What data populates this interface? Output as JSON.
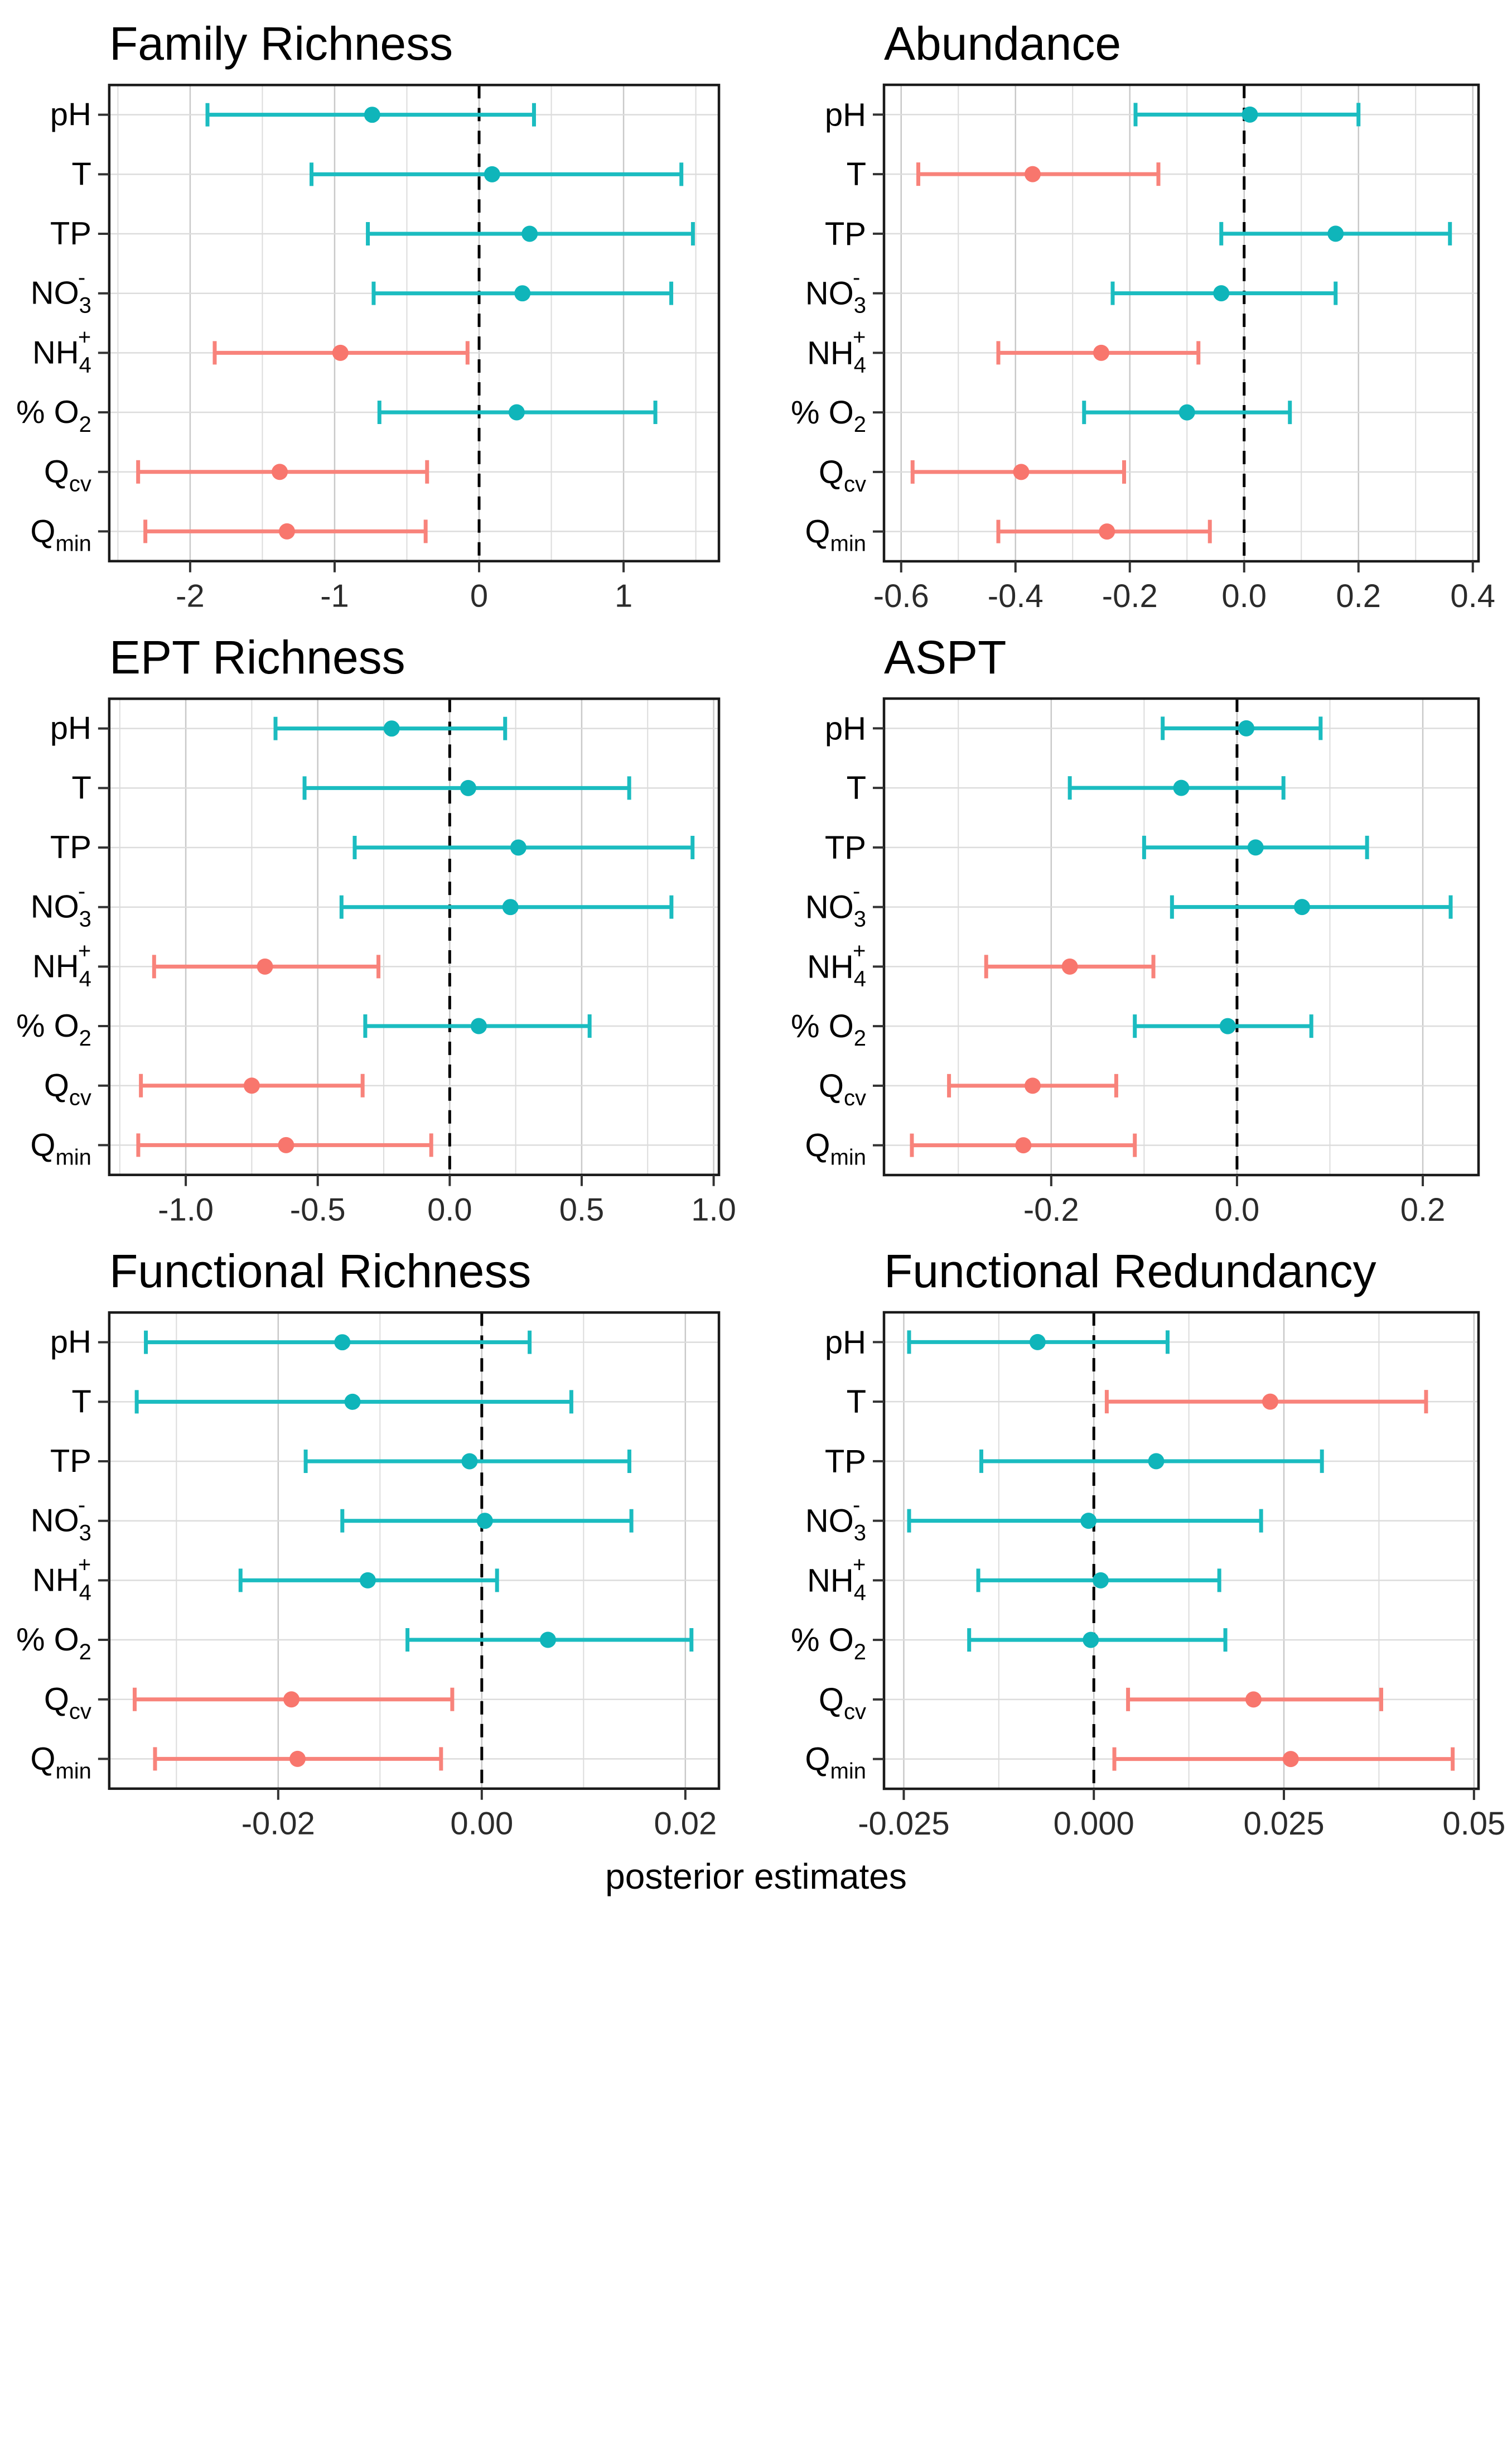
{
  "caption": "posterior estimates",
  "colors": {
    "nonsignificant_line": "#1BBCC0",
    "nonsignificant_point": "#0FB5BA",
    "significant_line": "#F8837B",
    "significant_point": "#F8766D",
    "grid_major": "#C9C9C9",
    "grid_minor": "#DCDCDC",
    "panel_border": "#1A1A1A",
    "tick": "#333333",
    "tick_label": "#2B2B2B",
    "y_label": "#000000",
    "zero_line": "#000000"
  },
  "category_labels": {
    "pH": {
      "parts": [
        {
          "t": "pH"
        }
      ]
    },
    "T": {
      "parts": [
        {
          "t": "T"
        }
      ]
    },
    "TP": {
      "parts": [
        {
          "t": "TP"
        }
      ]
    },
    "NO3": {
      "parts": [
        {
          "t": "NO"
        },
        {
          "t": "3",
          "pos": "sub"
        },
        {
          "t": "-",
          "pos": "sup",
          "stack": true
        }
      ]
    },
    "NH4": {
      "parts": [
        {
          "t": "NH"
        },
        {
          "t": "4",
          "pos": "sub"
        },
        {
          "t": "+",
          "pos": "sup",
          "stack": true
        }
      ]
    },
    "O2": {
      "parts": [
        {
          "t": "% O"
        },
        {
          "t": "2",
          "pos": "sub"
        }
      ]
    },
    "Qcv": {
      "parts": [
        {
          "t": "Q"
        },
        {
          "t": "cv",
          "pos": "sub"
        }
      ]
    },
    "Qmin": {
      "parts": [
        {
          "t": "Q"
        },
        {
          "t": "min",
          "pos": "sub"
        }
      ]
    }
  },
  "chart_data": [
    {
      "type": "errorbar",
      "title": "Family Richness",
      "xlabel": "",
      "xlim": [
        -2.56,
        1.66
      ],
      "xticks": {
        "values": [
          -2,
          -1,
          0,
          1
        ],
        "labels": [
          "-2",
          "-1",
          "0",
          "1"
        ]
      },
      "categories": [
        "pH",
        "T",
        "TP",
        "NO3",
        "NH4",
        "O2",
        "Qcv",
        "Qmin"
      ],
      "series": [
        {
          "category": "pH",
          "estimate": -0.74,
          "lower": -1.88,
          "upper": 0.38,
          "significant": false
        },
        {
          "category": "T",
          "estimate": 0.09,
          "lower": -1.16,
          "upper": 1.4,
          "significant": false
        },
        {
          "category": "TP",
          "estimate": 0.35,
          "lower": -0.77,
          "upper": 1.48,
          "significant": false
        },
        {
          "category": "NO3",
          "estimate": 0.3,
          "lower": -0.73,
          "upper": 1.33,
          "significant": false
        },
        {
          "category": "NH4",
          "estimate": -0.96,
          "lower": -1.83,
          "upper": -0.08,
          "significant": true
        },
        {
          "category": "O2",
          "estimate": 0.26,
          "lower": -0.69,
          "upper": 1.22,
          "significant": false
        },
        {
          "category": "Qcv",
          "estimate": -1.38,
          "lower": -2.36,
          "upper": -0.36,
          "significant": true
        },
        {
          "category": "Qmin",
          "estimate": -1.33,
          "lower": -2.31,
          "upper": -0.37,
          "significant": true
        }
      ]
    },
    {
      "type": "errorbar",
      "title": "Abundance",
      "xlabel": "",
      "xlim": [
        -0.63,
        0.41
      ],
      "xticks": {
        "values": [
          -0.6,
          -0.4,
          -0.2,
          0,
          0.2,
          0.4
        ],
        "labels": [
          "-0.6",
          "-0.4",
          "-0.2",
          "0.0",
          "0.2",
          "0.4"
        ]
      },
      "categories": [
        "pH",
        "T",
        "TP",
        "NO3",
        "NH4",
        "O2",
        "Qcv",
        "Qmin"
      ],
      "series": [
        {
          "category": "pH",
          "estimate": 0.01,
          "lower": -0.19,
          "upper": 0.2,
          "significant": false
        },
        {
          "category": "T",
          "estimate": -0.37,
          "lower": -0.57,
          "upper": -0.15,
          "significant": true
        },
        {
          "category": "TP",
          "estimate": 0.16,
          "lower": -0.04,
          "upper": 0.36,
          "significant": false
        },
        {
          "category": "NO3",
          "estimate": -0.04,
          "lower": -0.23,
          "upper": 0.16,
          "significant": false
        },
        {
          "category": "NH4",
          "estimate": -0.25,
          "lower": -0.43,
          "upper": -0.08,
          "significant": true
        },
        {
          "category": "O2",
          "estimate": -0.1,
          "lower": -0.28,
          "upper": 0.08,
          "significant": false
        },
        {
          "category": "Qcv",
          "estimate": -0.39,
          "lower": -0.58,
          "upper": -0.21,
          "significant": true
        },
        {
          "category": "Qmin",
          "estimate": -0.24,
          "lower": -0.43,
          "upper": -0.06,
          "significant": true
        }
      ]
    },
    {
      "type": "errorbar",
      "title": "EPT Richness",
      "xlabel": "",
      "xlim": [
        -1.29,
        1.02
      ],
      "xticks": {
        "values": [
          -1,
          -0.5,
          0,
          0.5,
          1
        ],
        "labels": [
          "-1.0",
          "-0.5",
          "0.0",
          "0.5",
          "1.0"
        ]
      },
      "categories": [
        "pH",
        "T",
        "TP",
        "NO3",
        "NH4",
        "O2",
        "Qcv",
        "Qmin"
      ],
      "series": [
        {
          "category": "pH",
          "estimate": -0.22,
          "lower": -0.66,
          "upper": 0.21,
          "significant": false
        },
        {
          "category": "T",
          "estimate": 0.07,
          "lower": -0.55,
          "upper": 0.68,
          "significant": false
        },
        {
          "category": "TP",
          "estimate": 0.26,
          "lower": -0.36,
          "upper": 0.92,
          "significant": false
        },
        {
          "category": "NO3",
          "estimate": 0.23,
          "lower": -0.41,
          "upper": 0.84,
          "significant": false
        },
        {
          "category": "NH4",
          "estimate": -0.7,
          "lower": -1.12,
          "upper": -0.27,
          "significant": true
        },
        {
          "category": "O2",
          "estimate": 0.11,
          "lower": -0.32,
          "upper": 0.53,
          "significant": false
        },
        {
          "category": "Qcv",
          "estimate": -0.75,
          "lower": -1.17,
          "upper": -0.33,
          "significant": true
        },
        {
          "category": "Qmin",
          "estimate": -0.62,
          "lower": -1.18,
          "upper": -0.07,
          "significant": true
        }
      ]
    },
    {
      "type": "errorbar",
      "title": "ASPT",
      "xlabel": "",
      "xlim": [
        -0.38,
        0.26
      ],
      "xticks": {
        "values": [
          -0.2,
          0,
          0.2
        ],
        "labels": [
          "-0.2",
          "0.0",
          "0.2"
        ]
      },
      "categories": [
        "pH",
        "T",
        "TP",
        "NO3",
        "NH4",
        "O2",
        "Qcv",
        "Qmin"
      ],
      "series": [
        {
          "category": "pH",
          "estimate": 0.01,
          "lower": -0.08,
          "upper": 0.09,
          "significant": false
        },
        {
          "category": "T",
          "estimate": -0.06,
          "lower": -0.18,
          "upper": 0.05,
          "significant": false
        },
        {
          "category": "TP",
          "estimate": 0.02,
          "lower": -0.1,
          "upper": 0.14,
          "significant": false
        },
        {
          "category": "NO3",
          "estimate": 0.07,
          "lower": -0.07,
          "upper": 0.23,
          "significant": false
        },
        {
          "category": "NH4",
          "estimate": -0.18,
          "lower": -0.27,
          "upper": -0.09,
          "significant": true
        },
        {
          "category": "O2",
          "estimate": -0.01,
          "lower": -0.11,
          "upper": 0.08,
          "significant": false
        },
        {
          "category": "Qcv",
          "estimate": -0.22,
          "lower": -0.31,
          "upper": -0.13,
          "significant": true
        },
        {
          "category": "Qmin",
          "estimate": -0.23,
          "lower": -0.35,
          "upper": -0.11,
          "significant": true
        }
      ]
    },
    {
      "type": "errorbar",
      "title": "Functional Richness",
      "xlabel": "",
      "xlim": [
        -0.0366,
        0.0233
      ],
      "xticks": {
        "values": [
          -0.02,
          0,
          0.02
        ],
        "labels": [
          "-0.02",
          "0.00",
          "0.02"
        ]
      },
      "categories": [
        "pH",
        "T",
        "TP",
        "NO3",
        "NH4",
        "O2",
        "Qcv",
        "Qmin"
      ],
      "series": [
        {
          "category": "pH",
          "estimate": -0.0137,
          "lower": -0.033,
          "upper": 0.0047,
          "significant": false
        },
        {
          "category": "T",
          "estimate": -0.0127,
          "lower": -0.0339,
          "upper": 0.0088,
          "significant": false
        },
        {
          "category": "TP",
          "estimate": -0.0012,
          "lower": -0.0173,
          "upper": 0.0145,
          "significant": false
        },
        {
          "category": "NO3",
          "estimate": 0.0003,
          "lower": -0.0137,
          "upper": 0.0147,
          "significant": false
        },
        {
          "category": "NH4",
          "estimate": -0.0112,
          "lower": -0.0237,
          "upper": 0.0015,
          "significant": false
        },
        {
          "category": "O2",
          "estimate": 0.0065,
          "lower": -0.0073,
          "upper": 0.0206,
          "significant": false
        },
        {
          "category": "Qcv",
          "estimate": -0.0187,
          "lower": -0.0341,
          "upper": -0.0029,
          "significant": true
        },
        {
          "category": "Qmin",
          "estimate": -0.0181,
          "lower": -0.0321,
          "upper": -0.004,
          "significant": true
        }
      ]
    },
    {
      "type": "errorbar",
      "title": "Functional Redundancy",
      "xlabel": "",
      "xlim": [
        -0.0276,
        0.0506
      ],
      "xticks": {
        "values": [
          -0.025,
          0,
          0.025,
          0.05
        ],
        "labels": [
          "-0.025",
          "0.000",
          "0.025",
          "0.05"
        ]
      },
      "categories": [
        "pH",
        "T",
        "TP",
        "NO3",
        "NH4",
        "O2",
        "Qcv",
        "Qmin"
      ],
      "series": [
        {
          "category": "pH",
          "estimate": -0.0074,
          "lower": -0.0243,
          "upper": 0.0097,
          "significant": false
        },
        {
          "category": "T",
          "estimate": 0.0232,
          "lower": 0.0017,
          "upper": 0.0437,
          "significant": true
        },
        {
          "category": "TP",
          "estimate": 0.0082,
          "lower": -0.0148,
          "upper": 0.03,
          "significant": false
        },
        {
          "category": "NO3",
          "estimate": -0.0007,
          "lower": -0.0243,
          "upper": 0.022,
          "significant": false
        },
        {
          "category": "NH4",
          "estimate": 0.0009,
          "lower": -0.0152,
          "upper": 0.0165,
          "significant": false
        },
        {
          "category": "O2",
          "estimate": -0.0004,
          "lower": -0.0164,
          "upper": 0.0173,
          "significant": false
        },
        {
          "category": "Qcv",
          "estimate": 0.021,
          "lower": 0.0045,
          "upper": 0.0378,
          "significant": true
        },
        {
          "category": "Qmin",
          "estimate": 0.0259,
          "lower": 0.0027,
          "upper": 0.0472,
          "significant": true
        }
      ]
    }
  ]
}
